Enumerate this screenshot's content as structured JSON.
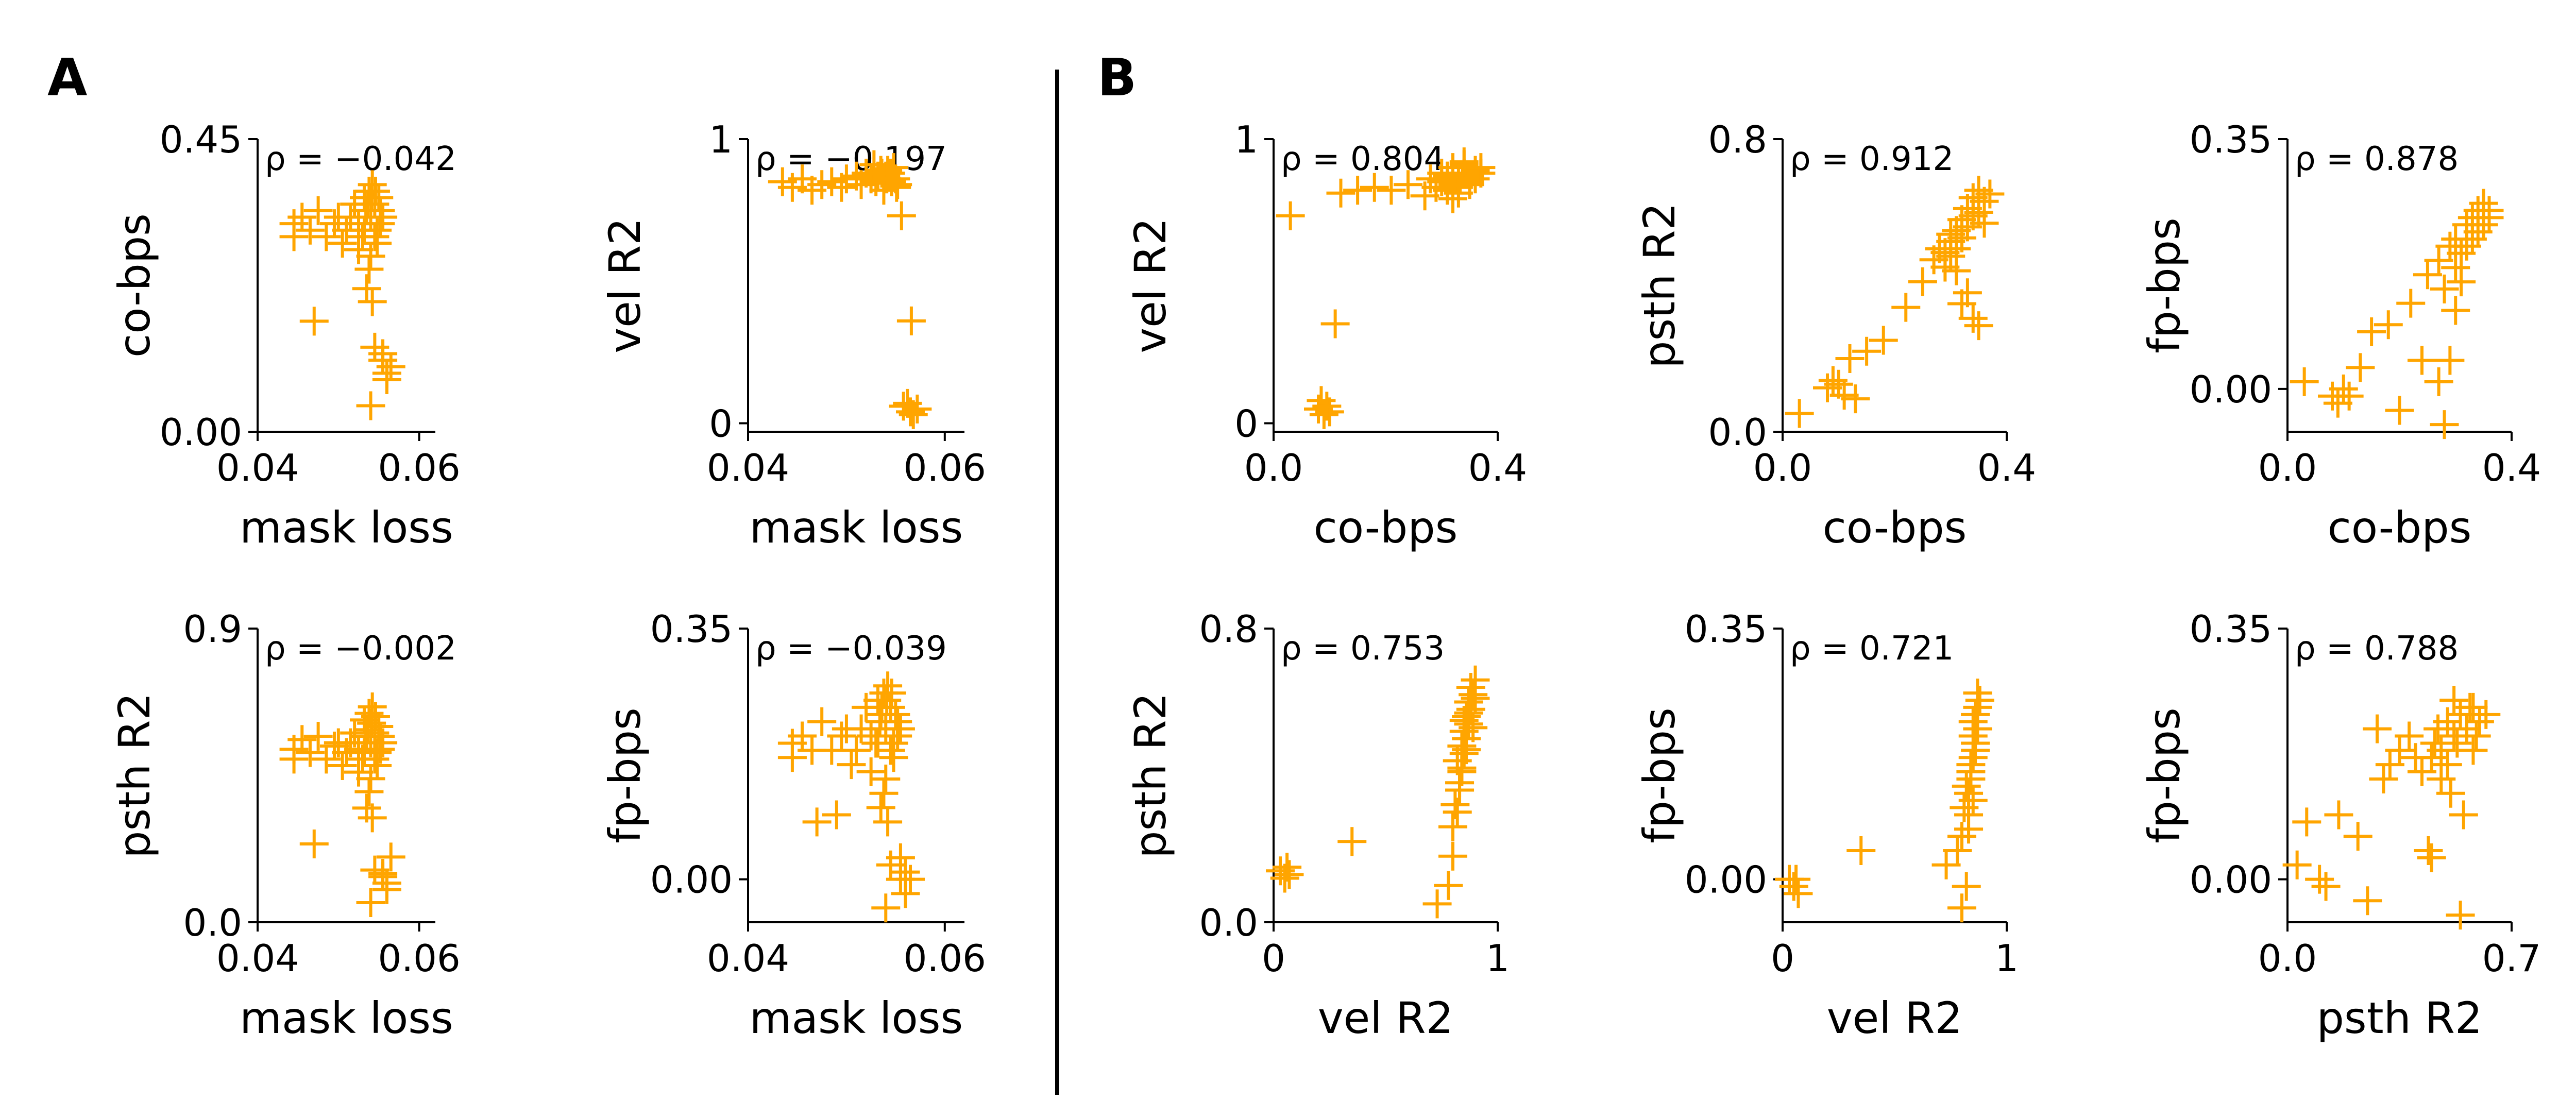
{
  "figure": {
    "panel_labels": [
      "A",
      "B"
    ],
    "marker": "+",
    "marker_color": "#FFA500",
    "axis_color": "#000000",
    "background": "#FFFFFF"
  },
  "chart_data": [
    {
      "id": "a1",
      "type": "scatter",
      "panel": "A",
      "title": "",
      "annotation": "ρ = −0.042",
      "xlabel": "mask loss",
      "ylabel": "co-bps",
      "xlim": [
        0.04,
        0.062
      ],
      "ylim": [
        0.0,
        0.45
      ],
      "xticks": [
        0.04,
        0.06
      ],
      "xticklabels": [
        "0.04",
        "0.06"
      ],
      "yticks": [
        0.0,
        0.45
      ],
      "yticklabels": [
        "0.00",
        "0.45"
      ],
      "x": [
        0.0445,
        0.0445,
        0.0455,
        0.0465,
        0.0475,
        0.0485,
        0.0495,
        0.05,
        0.0505,
        0.051,
        0.0515,
        0.052,
        0.0525,
        0.0525,
        0.053,
        0.0532,
        0.0535,
        0.0538,
        0.054,
        0.0542,
        0.0545,
        0.0548,
        0.055,
        0.0552,
        0.0555,
        0.0545,
        0.054,
        0.0538,
        0.0535,
        0.0542,
        0.0548,
        0.0552,
        0.0546,
        0.0541,
        0.0536,
        0.0534,
        0.0532,
        0.0545,
        0.0555,
        0.056,
        0.056,
        0.0565,
        0.0555,
        0.054,
        0.047
      ],
      "y": [
        0.32,
        0.3,
        0.33,
        0.31,
        0.34,
        0.3,
        0.32,
        0.33,
        0.29,
        0.31,
        0.33,
        0.35,
        0.32,
        0.28,
        0.3,
        0.36,
        0.34,
        0.37,
        0.33,
        0.38,
        0.35,
        0.31,
        0.36,
        0.34,
        0.33,
        0.3,
        0.27,
        0.25,
        0.22,
        0.2,
        0.29,
        0.32,
        0.37,
        0.36,
        0.35,
        0.34,
        0.31,
        0.13,
        0.11,
        0.09,
        0.08,
        0.1,
        0.12,
        0.04,
        0.17
      ]
    },
    {
      "id": "a2",
      "type": "scatter",
      "panel": "A",
      "title": "",
      "annotation": "ρ = −0.197",
      "xlabel": "mask loss",
      "ylabel": "vel R2",
      "xlim": [
        0.04,
        0.062
      ],
      "ylim": [
        -0.03,
        1.0
      ],
      "xticks": [
        0.04,
        0.06
      ],
      "xticklabels": [
        "0.04",
        "0.06"
      ],
      "yticks": [
        0,
        1
      ],
      "yticklabels": [
        "0",
        "1"
      ],
      "x": [
        0.0435,
        0.0445,
        0.0455,
        0.0465,
        0.0475,
        0.0485,
        0.0495,
        0.05,
        0.051,
        0.0515,
        0.052,
        0.0525,
        0.053,
        0.0535,
        0.054,
        0.0545,
        0.055,
        0.0552,
        0.0548,
        0.0538,
        0.0542,
        0.0532,
        0.0528,
        0.0546,
        0.0541,
        0.0536,
        0.0551,
        0.0556,
        0.0566,
        0.0562,
        0.0572,
        0.0565,
        0.0568,
        0.0558
      ],
      "y": [
        0.85,
        0.83,
        0.86,
        0.82,
        0.84,
        0.85,
        0.83,
        0.86,
        0.87,
        0.84,
        0.88,
        0.86,
        0.85,
        0.89,
        0.87,
        0.88,
        0.86,
        0.84,
        0.9,
        0.82,
        0.89,
        0.87,
        0.91,
        0.85,
        0.86,
        0.88,
        0.83,
        0.73,
        0.36,
        0.07,
        0.05,
        0.04,
        0.03,
        0.06
      ]
    },
    {
      "id": "a3",
      "type": "scatter",
      "panel": "A",
      "title": "",
      "annotation": "ρ = −0.002",
      "xlabel": "mask loss",
      "ylabel": "psth R2",
      "xlim": [
        0.04,
        0.062
      ],
      "ylim": [
        0.0,
        0.9
      ],
      "xticks": [
        0.04,
        0.06
      ],
      "xticklabels": [
        "0.04",
        "0.06"
      ],
      "yticks": [
        0.0,
        0.9
      ],
      "yticklabels": [
        "0.0",
        "0.9"
      ],
      "x": [
        0.0445,
        0.0445,
        0.0455,
        0.0465,
        0.0475,
        0.0485,
        0.0495,
        0.05,
        0.0505,
        0.051,
        0.0515,
        0.052,
        0.0525,
        0.0525,
        0.053,
        0.0532,
        0.0535,
        0.0538,
        0.054,
        0.0542,
        0.0545,
        0.0548,
        0.055,
        0.0552,
        0.0555,
        0.0545,
        0.054,
        0.0538,
        0.0535,
        0.0542,
        0.0548,
        0.0552,
        0.0546,
        0.0541,
        0.0536,
        0.0534,
        0.0532,
        0.0545,
        0.0555,
        0.056,
        0.056,
        0.0565,
        0.0555,
        0.054,
        0.047
      ],
      "y": [
        0.53,
        0.5,
        0.56,
        0.52,
        0.57,
        0.5,
        0.54,
        0.55,
        0.48,
        0.52,
        0.55,
        0.58,
        0.53,
        0.46,
        0.5,
        0.62,
        0.57,
        0.64,
        0.55,
        0.66,
        0.58,
        0.52,
        0.6,
        0.57,
        0.55,
        0.5,
        0.44,
        0.4,
        0.35,
        0.32,
        0.48,
        0.53,
        0.63,
        0.61,
        0.59,
        0.57,
        0.52,
        0.16,
        0.14,
        0.12,
        0.1,
        0.2,
        0.15,
        0.06,
        0.24
      ]
    },
    {
      "id": "a4",
      "type": "scatter",
      "panel": "A",
      "title": "",
      "annotation": "ρ = −0.039",
      "xlabel": "mask loss",
      "ylabel": "fp-bps",
      "xlim": [
        0.04,
        0.062
      ],
      "ylim": [
        -0.06,
        0.35
      ],
      "xticks": [
        0.04,
        0.06
      ],
      "xticklabels": [
        "0.04",
        "0.06"
      ],
      "yticks": [
        0.0,
        0.35
      ],
      "yticklabels": [
        "0.00",
        "0.35"
      ],
      "x": [
        0.0445,
        0.0445,
        0.0455,
        0.0465,
        0.0475,
        0.0485,
        0.0495,
        0.05,
        0.0505,
        0.051,
        0.0515,
        0.052,
        0.0525,
        0.0525,
        0.053,
        0.0532,
        0.0535,
        0.0538,
        0.054,
        0.0542,
        0.0545,
        0.0548,
        0.055,
        0.0552,
        0.0555,
        0.0545,
        0.054,
        0.0538,
        0.0535,
        0.0542,
        0.0548,
        0.0552,
        0.0546,
        0.0541,
        0.0536,
        0.0534,
        0.0532,
        0.0545,
        0.0555,
        0.056,
        0.056,
        0.0565,
        0.0555,
        0.054,
        0.047,
        0.049
      ],
      "y": [
        0.19,
        0.17,
        0.2,
        0.18,
        0.22,
        0.18,
        0.2,
        0.21,
        0.16,
        0.18,
        0.21,
        0.24,
        0.2,
        0.15,
        0.19,
        0.25,
        0.23,
        0.26,
        0.21,
        0.27,
        0.24,
        0.19,
        0.23,
        0.22,
        0.21,
        0.18,
        0.14,
        0.12,
        0.1,
        0.08,
        0.17,
        0.2,
        0.26,
        0.25,
        0.24,
        0.22,
        0.19,
        0.02,
        0.0,
        -0.02,
        0.01,
        0.0,
        0.03,
        -0.04,
        0.08,
        0.09
      ]
    },
    {
      "id": "b1",
      "type": "scatter",
      "panel": "B",
      "title": "",
      "annotation": "ρ = 0.804",
      "xlabel": "co-bps",
      "ylabel": "vel R2",
      "xlim": [
        0.0,
        0.4
      ],
      "ylim": [
        -0.03,
        1.0
      ],
      "xticks": [
        0.0,
        0.4
      ],
      "xticklabels": [
        "0.0",
        "0.4"
      ],
      "yticks": [
        0,
        1
      ],
      "yticklabels": [
        "0",
        "1"
      ],
      "x": [
        0.03,
        0.08,
        0.09,
        0.1,
        0.085,
        0.095,
        0.11,
        0.12,
        0.15,
        0.18,
        0.21,
        0.24,
        0.27,
        0.28,
        0.29,
        0.3,
        0.3,
        0.31,
        0.31,
        0.32,
        0.32,
        0.33,
        0.33,
        0.34,
        0.34,
        0.35,
        0.35,
        0.36,
        0.36,
        0.37,
        0.37,
        0.32,
        0.33,
        0.34,
        0.35,
        0.31
      ],
      "y": [
        0.73,
        0.05,
        0.03,
        0.04,
        0.08,
        0.06,
        0.35,
        0.81,
        0.82,
        0.83,
        0.82,
        0.84,
        0.8,
        0.86,
        0.83,
        0.85,
        0.88,
        0.82,
        0.87,
        0.84,
        0.9,
        0.86,
        0.83,
        0.88,
        0.91,
        0.85,
        0.87,
        0.89,
        0.86,
        0.88,
        0.9,
        0.79,
        0.81,
        0.92,
        0.84,
        0.87
      ]
    },
    {
      "id": "b2",
      "type": "scatter",
      "panel": "B",
      "title": "",
      "annotation": "ρ = 0.912",
      "xlabel": "co-bps",
      "ylabel": "psth R2",
      "xlim": [
        0.0,
        0.4
      ],
      "ylim": [
        0.0,
        0.8
      ],
      "xticks": [
        0.0,
        0.4
      ],
      "xticklabels": [
        "0.0",
        "0.4"
      ],
      "yticks": [
        0.0,
        0.8
      ],
      "yticklabels": [
        "0.0",
        "0.8"
      ],
      "x": [
        0.03,
        0.08,
        0.09,
        0.1,
        0.11,
        0.12,
        0.13,
        0.15,
        0.18,
        0.22,
        0.25,
        0.27,
        0.28,
        0.29,
        0.3,
        0.3,
        0.31,
        0.31,
        0.32,
        0.32,
        0.33,
        0.33,
        0.34,
        0.34,
        0.35,
        0.35,
        0.36,
        0.36,
        0.37,
        0.31,
        0.33,
        0.32,
        0.34,
        0.35,
        0.3,
        0.29
      ],
      "y": [
        0.05,
        0.12,
        0.14,
        0.13,
        0.1,
        0.2,
        0.09,
        0.22,
        0.25,
        0.34,
        0.41,
        0.47,
        0.5,
        0.45,
        0.52,
        0.48,
        0.55,
        0.5,
        0.58,
        0.53,
        0.61,
        0.56,
        0.64,
        0.59,
        0.66,
        0.6,
        0.63,
        0.57,
        0.65,
        0.44,
        0.38,
        0.35,
        0.31,
        0.29,
        0.54,
        0.49
      ]
    },
    {
      "id": "b3",
      "type": "scatter",
      "panel": "B",
      "title": "",
      "annotation": "ρ = 0.878",
      "xlabel": "co-bps",
      "ylabel": "fp-bps",
      "xlim": [
        0.0,
        0.4
      ],
      "ylim": [
        -0.06,
        0.35
      ],
      "xticks": [
        0.0,
        0.4
      ],
      "xticklabels": [
        "0.0",
        "0.4"
      ],
      "yticks": [
        0.0,
        0.35
      ],
      "yticklabels": [
        "0.00",
        "0.35"
      ],
      "x": [
        0.03,
        0.08,
        0.09,
        0.1,
        0.11,
        0.13,
        0.15,
        0.18,
        0.2,
        0.22,
        0.24,
        0.25,
        0.27,
        0.28,
        0.29,
        0.3,
        0.3,
        0.31,
        0.32,
        0.32,
        0.33,
        0.33,
        0.34,
        0.34,
        0.35,
        0.35,
        0.36,
        0.36,
        0.3,
        0.29,
        0.27,
        0.28,
        0.31
      ],
      "y": [
        0.01,
        -0.01,
        -0.02,
        0.0,
        -0.01,
        0.03,
        0.08,
        0.09,
        -0.03,
        0.12,
        0.04,
        0.16,
        0.18,
        0.14,
        0.2,
        0.17,
        0.21,
        0.19,
        0.23,
        0.2,
        0.24,
        0.21,
        0.25,
        0.22,
        0.26,
        0.23,
        0.25,
        0.24,
        0.11,
        0.04,
        0.01,
        -0.05,
        0.15
      ]
    },
    {
      "id": "b4",
      "type": "scatter",
      "panel": "B",
      "title": "",
      "annotation": "ρ = 0.753",
      "xlabel": "vel R2",
      "ylabel": "psth R2",
      "xlim": [
        0.0,
        1.0
      ],
      "ylim": [
        0.0,
        0.8
      ],
      "xticks": [
        0,
        1
      ],
      "xticklabels": [
        "0",
        "1"
      ],
      "yticks": [
        0.0,
        0.8
      ],
      "yticklabels": [
        "0.0",
        "0.8"
      ],
      "x": [
        0.03,
        0.05,
        0.06,
        0.07,
        0.35,
        0.73,
        0.78,
        0.8,
        0.8,
        0.81,
        0.82,
        0.83,
        0.84,
        0.85,
        0.86,
        0.87,
        0.88,
        0.89,
        0.9,
        0.84,
        0.85,
        0.86,
        0.87,
        0.88,
        0.83,
        0.82,
        0.86,
        0.85,
        0.84,
        0.87,
        0.89,
        0.9
      ],
      "y": [
        0.14,
        0.12,
        0.15,
        0.13,
        0.22,
        0.05,
        0.1,
        0.18,
        0.26,
        0.32,
        0.3,
        0.36,
        0.42,
        0.46,
        0.5,
        0.54,
        0.58,
        0.62,
        0.66,
        0.48,
        0.52,
        0.56,
        0.6,
        0.64,
        0.38,
        0.44,
        0.47,
        0.55,
        0.41,
        0.57,
        0.53,
        0.61
      ]
    },
    {
      "id": "b5",
      "type": "scatter",
      "panel": "B",
      "title": "",
      "annotation": "ρ = 0.721",
      "xlabel": "vel R2",
      "ylabel": "fp-bps",
      "xlim": [
        0.0,
        1.0
      ],
      "ylim": [
        -0.06,
        0.35
      ],
      "xticks": [
        0,
        1
      ],
      "xticklabels": [
        "0",
        "1"
      ],
      "yticks": [
        0.0,
        0.35
      ],
      "yticklabels": [
        "0.00",
        "0.35"
      ],
      "x": [
        0.03,
        0.05,
        0.06,
        0.07,
        0.35,
        0.73,
        0.78,
        0.8,
        0.8,
        0.81,
        0.82,
        0.83,
        0.84,
        0.85,
        0.86,
        0.87,
        0.88,
        0.84,
        0.85,
        0.86,
        0.87,
        0.83,
        0.82,
        0.86,
        0.85,
        0.84,
        0.87,
        0.83,
        0.85
      ],
      "y": [
        0.0,
        -0.01,
        0.0,
        -0.02,
        0.04,
        0.02,
        0.04,
        0.06,
        -0.04,
        0.1,
        -0.01,
        0.12,
        0.14,
        0.17,
        0.19,
        0.21,
        0.25,
        0.16,
        0.2,
        0.23,
        0.26,
        0.09,
        0.13,
        0.18,
        0.22,
        0.15,
        0.24,
        0.07,
        0.11
      ]
    },
    {
      "id": "b6",
      "type": "scatter",
      "panel": "B",
      "title": "",
      "annotation": "ρ = 0.788",
      "xlabel": "psth R2",
      "ylabel": "fp-bps",
      "xlim": [
        0.0,
        0.7
      ],
      "ylim": [
        -0.06,
        0.35
      ],
      "xticks": [
        0.0,
        0.7
      ],
      "xticklabels": [
        "0.0",
        "0.7"
      ],
      "yticks": [
        0.0,
        0.35
      ],
      "yticklabels": [
        "0.00",
        "0.35"
      ],
      "x": [
        0.03,
        0.06,
        0.1,
        0.12,
        0.16,
        0.22,
        0.25,
        0.28,
        0.3,
        0.32,
        0.35,
        0.38,
        0.4,
        0.42,
        0.44,
        0.45,
        0.46,
        0.47,
        0.48,
        0.5,
        0.52,
        0.54,
        0.56,
        0.58,
        0.6,
        0.62,
        0.5,
        0.53,
        0.57,
        0.59,
        0.55,
        0.51,
        0.48,
        0.45,
        0.52,
        0.58,
        0.54
      ],
      "y": [
        0.02,
        0.08,
        0.0,
        -0.01,
        0.09,
        0.06,
        -0.03,
        0.21,
        0.14,
        0.16,
        0.18,
        0.2,
        0.17,
        0.15,
        0.04,
        0.03,
        0.19,
        0.21,
        0.18,
        0.22,
        0.2,
        0.23,
        0.21,
        0.24,
        0.22,
        0.23,
        0.16,
        0.19,
        0.24,
        0.2,
        0.09,
        0.12,
        0.14,
        0.17,
        0.25,
        0.18,
        -0.05
      ]
    }
  ]
}
